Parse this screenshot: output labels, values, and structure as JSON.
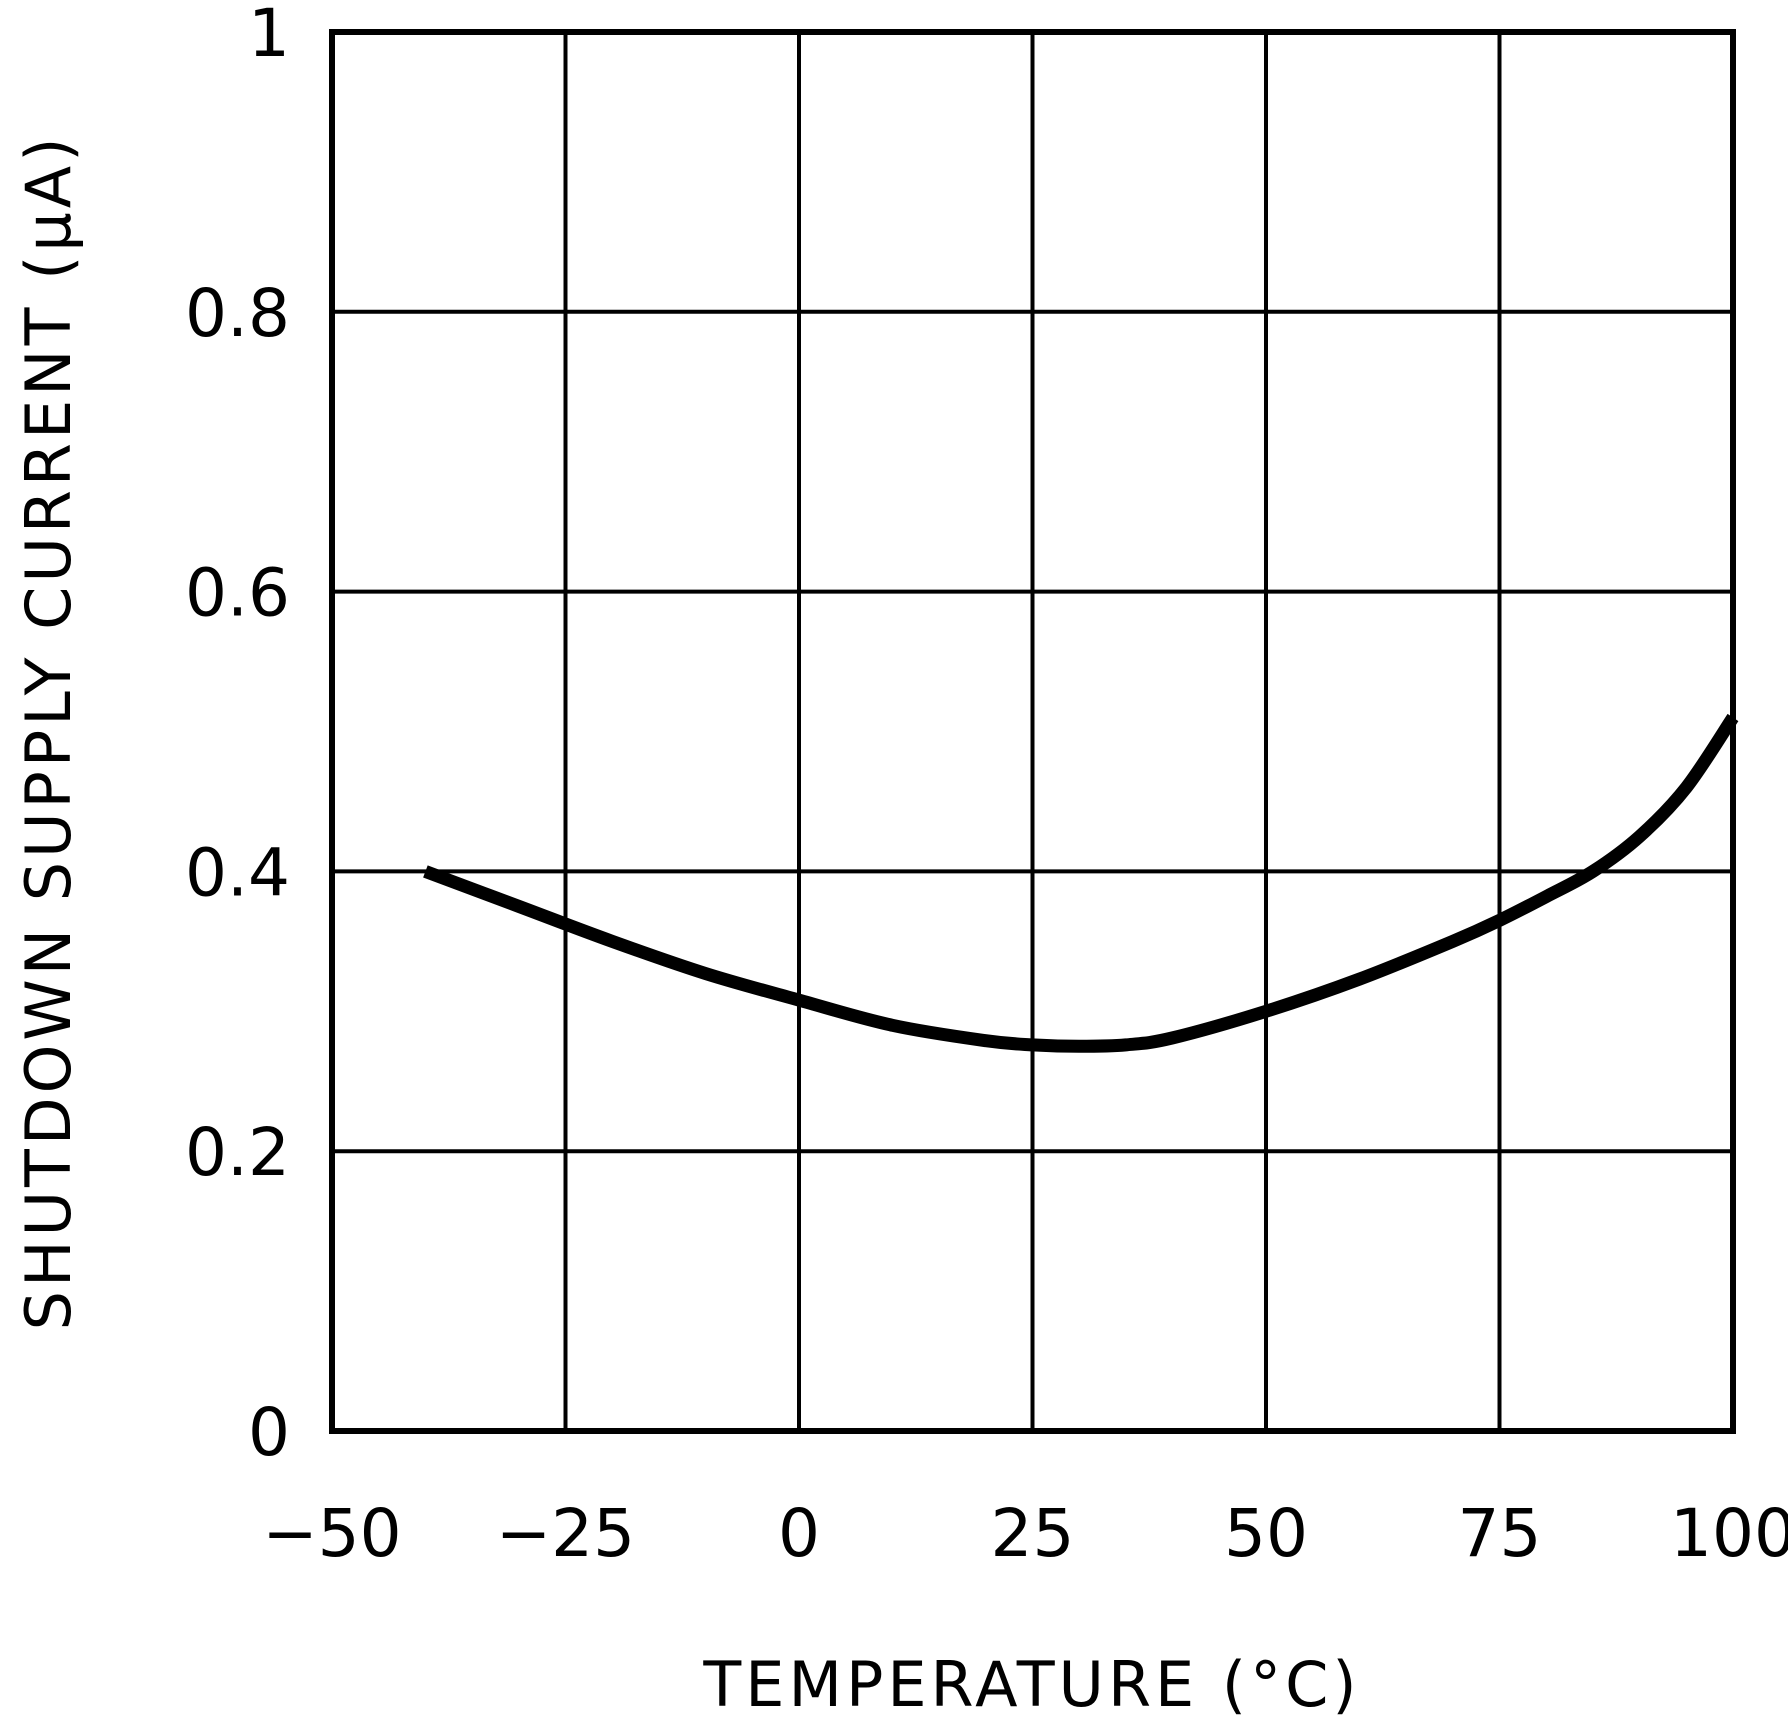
{
  "chart_data": {
    "type": "line",
    "title": "",
    "xlabel": "TEMPERATURE (°C)",
    "ylabel": "SHUTDOWN SUPPLY CURRENT (µA)",
    "xlim": [
      -50,
      100
    ],
    "ylim": [
      0,
      1
    ],
    "xticks": [
      -50,
      -25,
      0,
      25,
      50,
      75,
      100
    ],
    "yticks": [
      0,
      0.2,
      0.4,
      0.6,
      0.8,
      1
    ],
    "xtick_labels": [
      "−50",
      "−25",
      "0",
      "25",
      "50",
      "75",
      "100"
    ],
    "ytick_labels": [
      "0",
      "0.2",
      "0.4",
      "0.6",
      "0.8",
      "1"
    ],
    "grid": true,
    "colors": {
      "line": "#000000",
      "grid": "#000000"
    },
    "series": [
      {
        "x": [
          -40,
          -30,
          -20,
          -10,
          0,
          10,
          20,
          25,
          30,
          35,
          40,
          50,
          60,
          70,
          75,
          80,
          85,
          90,
          95,
          100
        ],
        "y": [
          0.4,
          0.375,
          0.35,
          0.327,
          0.308,
          0.29,
          0.279,
          0.276,
          0.275,
          0.276,
          0.281,
          0.3,
          0.323,
          0.35,
          0.365,
          0.382,
          0.4,
          0.425,
          0.46,
          0.51
        ]
      }
    ]
  }
}
